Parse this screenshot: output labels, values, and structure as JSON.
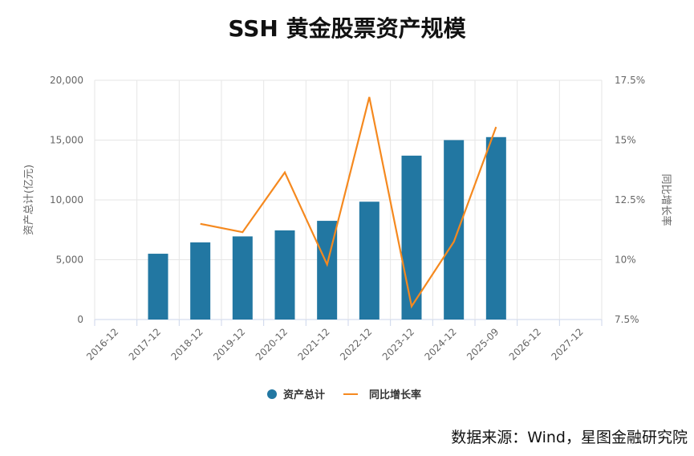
{
  "title": "SSH 黄金股票资产规模",
  "source": "数据来源：Wind，星图金融研究院",
  "colors": {
    "bar": "#2277a2",
    "line": "#f5891f",
    "grid": "#e6e6e6",
    "axis": "#ccd6eb"
  },
  "chart_data": {
    "type": "bar",
    "categories": [
      "2016-12",
      "2017-12",
      "2018-12",
      "2019-12",
      "2020-12",
      "2021-12",
      "2022-12",
      "2023-12",
      "2024-12",
      "2025-09",
      "2026-12",
      "2027-12"
    ],
    "series": [
      {
        "name": "资产总计",
        "type": "bar",
        "axis": "left",
        "values": [
          null,
          5500,
          6450,
          6950,
          7450,
          8250,
          9850,
          13700,
          15000,
          15250,
          null,
          null
        ]
      },
      {
        "name": "同比增长率",
        "type": "line",
        "axis": "right",
        "values": [
          null,
          null,
          11.5,
          11.15,
          13.65,
          9.8,
          16.8,
          8.05,
          10.75,
          15.55,
          null,
          null
        ]
      }
    ],
    "y_left": {
      "label": "资产总计(亿元)",
      "min": 0,
      "max": 20000,
      "ticks": [
        "0",
        "5,000",
        "10,000",
        "15,000",
        "20,000"
      ]
    },
    "y_right": {
      "label": "同比增长率",
      "min": 7.5,
      "max": 17.5,
      "ticks": [
        "7.5%",
        "10%",
        "12.5%",
        "15%",
        "17.5%"
      ]
    },
    "grid": true,
    "legend_position": "bottom"
  }
}
